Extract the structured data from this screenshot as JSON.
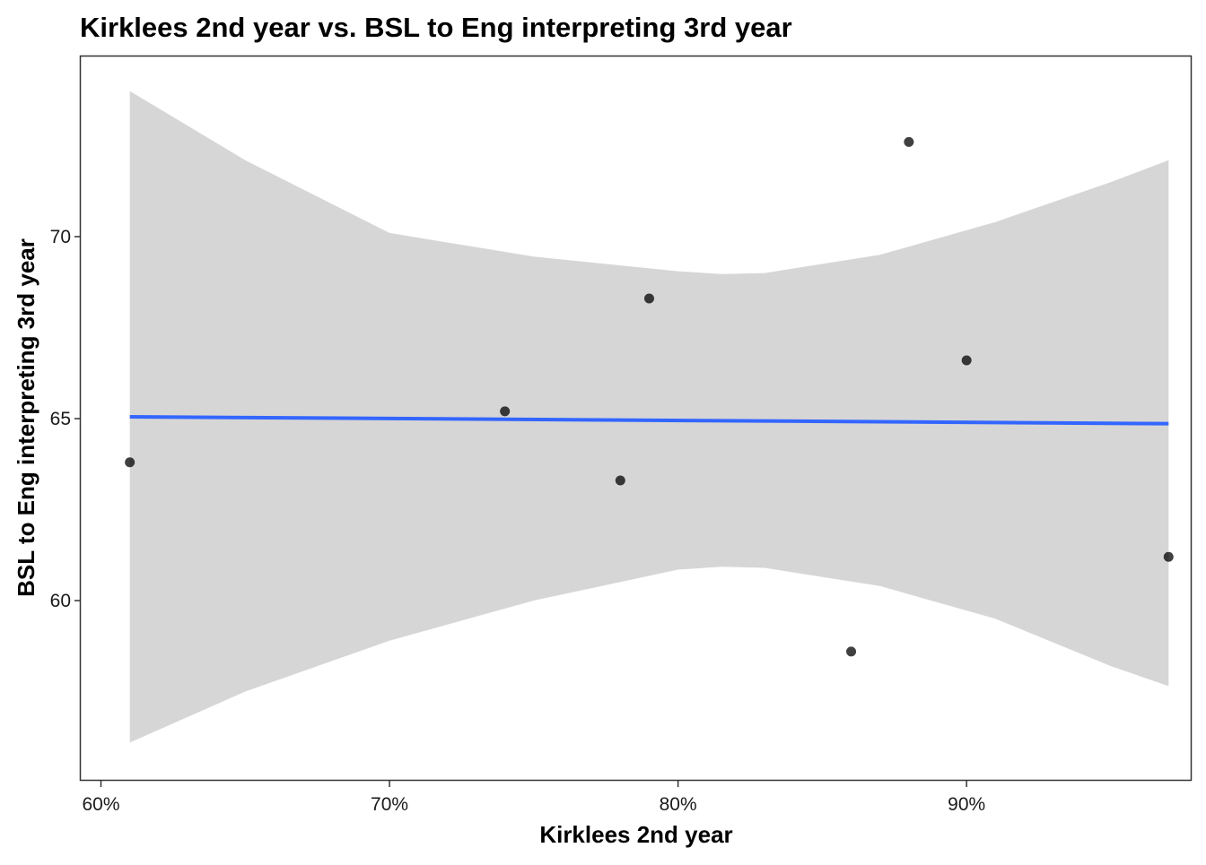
{
  "chart_data": {
    "type": "scatter",
    "title": "Kirklees 2nd year vs. BSL to Eng interpreting 3rd year",
    "xlabel": "Kirklees 2nd year",
    "ylabel": "BSL to Eng interpreting 3rd year",
    "x_format": "percent",
    "xlim": [
      0.593,
      0.978
    ],
    "ylim": [
      55.05,
      74.95
    ],
    "x_ticks": [
      0.6,
      0.7,
      0.8,
      0.9
    ],
    "x_tick_labels": [
      "60%",
      "70%",
      "80%",
      "90%"
    ],
    "y_ticks": [
      60,
      65,
      70
    ],
    "y_tick_labels": [
      "60",
      "65",
      "70"
    ],
    "points": [
      {
        "x": 0.61,
        "y": 63.8
      },
      {
        "x": 0.74,
        "y": 65.2
      },
      {
        "x": 0.78,
        "y": 63.3
      },
      {
        "x": 0.79,
        "y": 68.3
      },
      {
        "x": 0.86,
        "y": 58.6
      },
      {
        "x": 0.88,
        "y": 72.6
      },
      {
        "x": 0.9,
        "y": 66.6
      },
      {
        "x": 0.97,
        "y": 61.2
      }
    ],
    "trend": {
      "method": "linear regression (lm)",
      "x": [
        0.61,
        0.97
      ],
      "y": [
        65.05,
        64.86
      ]
    },
    "confidence_band": {
      "x": [
        0.61,
        0.65,
        0.7,
        0.75,
        0.8,
        0.815,
        0.83,
        0.87,
        0.91,
        0.95,
        0.97
      ],
      "lower": [
        56.1,
        57.5,
        58.9,
        60.0,
        60.85,
        60.93,
        60.9,
        60.4,
        59.5,
        58.2,
        57.65
      ],
      "upper": [
        74.0,
        72.1,
        70.1,
        69.45,
        69.05,
        68.97,
        69.0,
        69.5,
        70.4,
        71.5,
        72.1
      ]
    },
    "colors": {
      "points": "#000000",
      "trend": "#3366FF",
      "band": "#D6D6D6",
      "panel_border": "#333333"
    },
    "grid": false,
    "legend": "none"
  }
}
